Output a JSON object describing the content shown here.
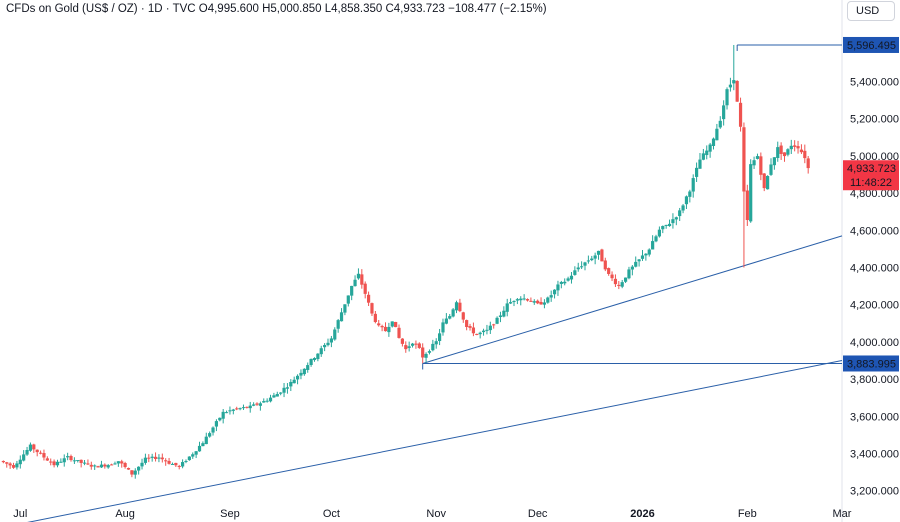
{
  "header": {
    "title": "CFDs on Gold (US$ / OZ) · 1D · TVC   O4,995.600  H5,000.850  L4,858.350  C4,933.723  −108.477 (−2.15%)"
  },
  "currency_button": {
    "label": "USD"
  },
  "colors": {
    "up": "#26a69a",
    "down": "#ef5350",
    "line": "#2a5fa8",
    "flag": "#1e55b3",
    "price_bg": "#f23645"
  },
  "chart_data": {
    "type": "candlestick",
    "title": "CFDs on Gold (US$ / OZ)",
    "interval": "1D",
    "source": "TVC",
    "ohlc": {
      "open": "4,995.600",
      "high": "5,000.850",
      "low": "4,858.350",
      "close": "4,933.723",
      "change": "−108.477 (−2.15%)"
    },
    "y_axis": {
      "min": 3150,
      "max": 5720,
      "ticks": [
        "3,200.000",
        "3,400.000",
        "3,600.000",
        "3,800.000",
        "4,000.000",
        "4,200.000",
        "4,400.000",
        "4,600.000",
        "4,800.000",
        "5,000.000",
        "5,200.000",
        "5,400.000"
      ]
    },
    "x_axis": {
      "labels": [
        {
          "label": "Jul",
          "day": 0
        },
        {
          "label": "Aug",
          "day": 31
        },
        {
          "label": "Sep",
          "day": 62
        },
        {
          "label": "Oct",
          "day": 92
        },
        {
          "label": "Nov",
          "day": 123
        },
        {
          "label": "Dec",
          "day": 153
        },
        {
          "label": "2026",
          "day": 184,
          "bold": true
        },
        {
          "label": "Feb",
          "day": 215
        },
        {
          "label": "Mar",
          "day": 243
        }
      ],
      "day_offset": -6,
      "last_day": 236
    },
    "last_price": {
      "value": "4,933.723",
      "countdown": "11:48:22"
    },
    "horizontal_levels": [
      {
        "label": "5,596.495",
        "value": 5596.495,
        "from_day": 212
      },
      {
        "label": "3,883.995",
        "value": 3883.995,
        "from_day": 119
      }
    ],
    "trendlines": [
      {
        "name": "long-term-support",
        "from": {
          "day": -6,
          "value": 3000
        },
        "to": {
          "day": 243,
          "value": 3900
        }
      },
      {
        "name": "rally-support",
        "from": {
          "day": 119,
          "value": 3883.995
        },
        "to": {
          "day": 243,
          "value": 4570
        }
      }
    ],
    "anchors": [
      [
        -6,
        3360
      ],
      [
        -2,
        3330
      ],
      [
        3,
        3440
      ],
      [
        7,
        3380
      ],
      [
        10,
        3340
      ],
      [
        14,
        3380
      ],
      [
        18,
        3350
      ],
      [
        22,
        3330
      ],
      [
        26,
        3340
      ],
      [
        29,
        3360
      ],
      [
        33,
        3290
      ],
      [
        37,
        3370
      ],
      [
        41,
        3380
      ],
      [
        44,
        3350
      ],
      [
        47,
        3330
      ],
      [
        51,
        3400
      ],
      [
        54,
        3460
      ],
      [
        57,
        3540
      ],
      [
        60,
        3620
      ],
      [
        64,
        3640
      ],
      [
        68,
        3650
      ],
      [
        72,
        3680
      ],
      [
        76,
        3720
      ],
      [
        80,
        3780
      ],
      [
        84,
        3860
      ],
      [
        88,
        3940
      ],
      [
        92,
        4020
      ],
      [
        95,
        4160
      ],
      [
        98,
        4300
      ],
      [
        100,
        4360
      ],
      [
        102,
        4260
      ],
      [
        104,
        4150
      ],
      [
        106,
        4080
      ],
      [
        108,
        4060
      ],
      [
        110,
        4120
      ],
      [
        112,
        4020
      ],
      [
        114,
        3960
      ],
      [
        116,
        4000
      ],
      [
        118,
        3960
      ],
      [
        119,
        3920
      ],
      [
        121,
        3960
      ],
      [
        123,
        4000
      ],
      [
        125,
        4100
      ],
      [
        127,
        4140
      ],
      [
        129,
        4220
      ],
      [
        132,
        4080
      ],
      [
        135,
        4040
      ],
      [
        138,
        4060
      ],
      [
        141,
        4120
      ],
      [
        144,
        4200
      ],
      [
        147,
        4240
      ],
      [
        150,
        4230
      ],
      [
        153,
        4200
      ],
      [
        156,
        4230
      ],
      [
        159,
        4300
      ],
      [
        162,
        4340
      ],
      [
        165,
        4400
      ],
      [
        168,
        4440
      ],
      [
        171,
        4480
      ],
      [
        174,
        4360
      ],
      [
        177,
        4300
      ],
      [
        180,
        4380
      ],
      [
        183,
        4440
      ],
      [
        186,
        4500
      ],
      [
        189,
        4600
      ],
      [
        192,
        4640
      ],
      [
        195,
        4700
      ],
      [
        198,
        4820
      ],
      [
        201,
        4980
      ],
      [
        204,
        5050
      ],
      [
        207,
        5200
      ],
      [
        209,
        5350
      ],
      [
        211,
        5420
      ],
      [
        213,
        5150
      ],
      [
        214,
        4800
      ],
      [
        215,
        4650
      ],
      [
        216,
        4950
      ],
      [
        218,
        5000
      ],
      [
        220,
        4820
      ],
      [
        222,
        4960
      ],
      [
        224,
        5040
      ],
      [
        226,
        5000
      ],
      [
        228,
        5060
      ],
      [
        230,
        5050
      ],
      [
        232,
        4995.6
      ],
      [
        233,
        4933.723
      ]
    ]
  }
}
